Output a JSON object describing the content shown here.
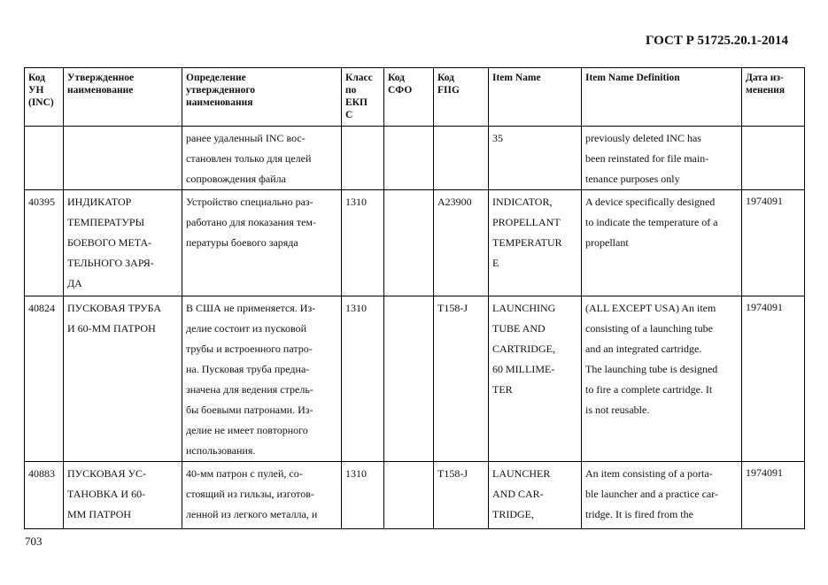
{
  "header": {
    "doc_title": "ГОСТ Р 51725.20.1-2014"
  },
  "table": {
    "columns": [
      "Код УН (INC)",
      "Утвержденное наименование",
      "Определение утвержденного наименования",
      "Класс по ЕКПС",
      "Код СФО",
      "Код FIIG",
      "Item Name",
      "Item Name Definition",
      "Дата изменения"
    ],
    "column_lines": [
      [
        "Код",
        "УН",
        "(INC)"
      ],
      [
        "Утвержденное",
        "наименование"
      ],
      [
        "Определение",
        "утвержденного",
        "наименования"
      ],
      [
        "Класс",
        "по",
        "ЕКП",
        "С"
      ],
      [
        "Код",
        "СФО"
      ],
      [
        "Код",
        "FIIG"
      ],
      [
        "Item Name"
      ],
      [
        "Item Name Definition"
      ],
      [
        "Дата из-",
        "менения"
      ]
    ],
    "rows": [
      {
        "inc": [],
        "name": [],
        "definition": [
          "ранее удаленный INC вос-",
          "становлен только для целей",
          "сопровождения файла"
        ],
        "class": [],
        "sfo": [],
        "fiig": [],
        "item_name": [
          "35"
        ],
        "item_def": [
          "previously deleted INC has",
          "been reinstated for file main-",
          "tenance purposes only"
        ],
        "date": []
      },
      {
        "inc": [
          "40395"
        ],
        "name": [
          "ИНДИКАТОР",
          "ТЕМПЕРАТУРЫ",
          "БОЕВОГО МЕТА-",
          "ТЕЛЬНОГО ЗАРЯ-",
          "ДА"
        ],
        "definition": [
          "Устройство специально раз-",
          "работано для показания тем-",
          "пературы боевого заряда"
        ],
        "class": [
          "1310"
        ],
        "sfo": [],
        "fiig": [
          "A23900"
        ],
        "item_name": [
          "INDICATOR,",
          "PROPELLANT",
          "TEMPERATUR",
          "E"
        ],
        "item_def": [
          "A device specifically designed",
          "to indicate the temperature of a",
          "propellant"
        ],
        "date": [
          "1974091"
        ]
      },
      {
        "inc": [
          "40824"
        ],
        "name": [
          "ПУСКОВАЯ ТРУБА",
          "И 60-ММ ПАТРОН"
        ],
        "definition": [
          "В США не применяется. Из-",
          "делие состоит из пусковой",
          "трубы и встроенного патро-",
          "на. Пусковая труба предна-",
          "значена для ведения стрель-",
          "бы боевыми патронами. Из-",
          "делие не имеет повторного",
          "использования."
        ],
        "class": [
          "1310"
        ],
        "sfo": [],
        "fiig": [
          "T158-J"
        ],
        "item_name": [
          "LAUNCHING",
          "TUBE AND",
          "CARTRIDGE,",
          "60 MILLIME-",
          "TER"
        ],
        "item_def": [
          "(ALL EXCEPT USA) An item",
          "consisting of a launching tube",
          "and an integrated cartridge.",
          "The launching tube is designed",
          "to fire a complete cartridge. It",
          "is not reusable."
        ],
        "date": [
          "1974091"
        ]
      },
      {
        "inc": [
          "40883"
        ],
        "name": [
          "ПУСКОВАЯ УС-",
          "ТАНОВКА И 60-",
          "ММ ПАТРОН"
        ],
        "definition": [
          "40-мм патрон с пулей, со-",
          "стоящий из гильзы, изготов-",
          "ленной из легкого металла, и"
        ],
        "class": [
          "1310"
        ],
        "sfo": [],
        "fiig": [
          "T158-J"
        ],
        "item_name": [
          "LAUNCHER",
          "AND CAR-",
          "TRIDGE,"
        ],
        "item_def": [
          "An item consisting of a porta-",
          "ble launcher and a practice car-",
          "tridge. It is fired from the"
        ],
        "date": [
          "1974091"
        ]
      }
    ]
  },
  "footer": {
    "page_number": "703"
  }
}
